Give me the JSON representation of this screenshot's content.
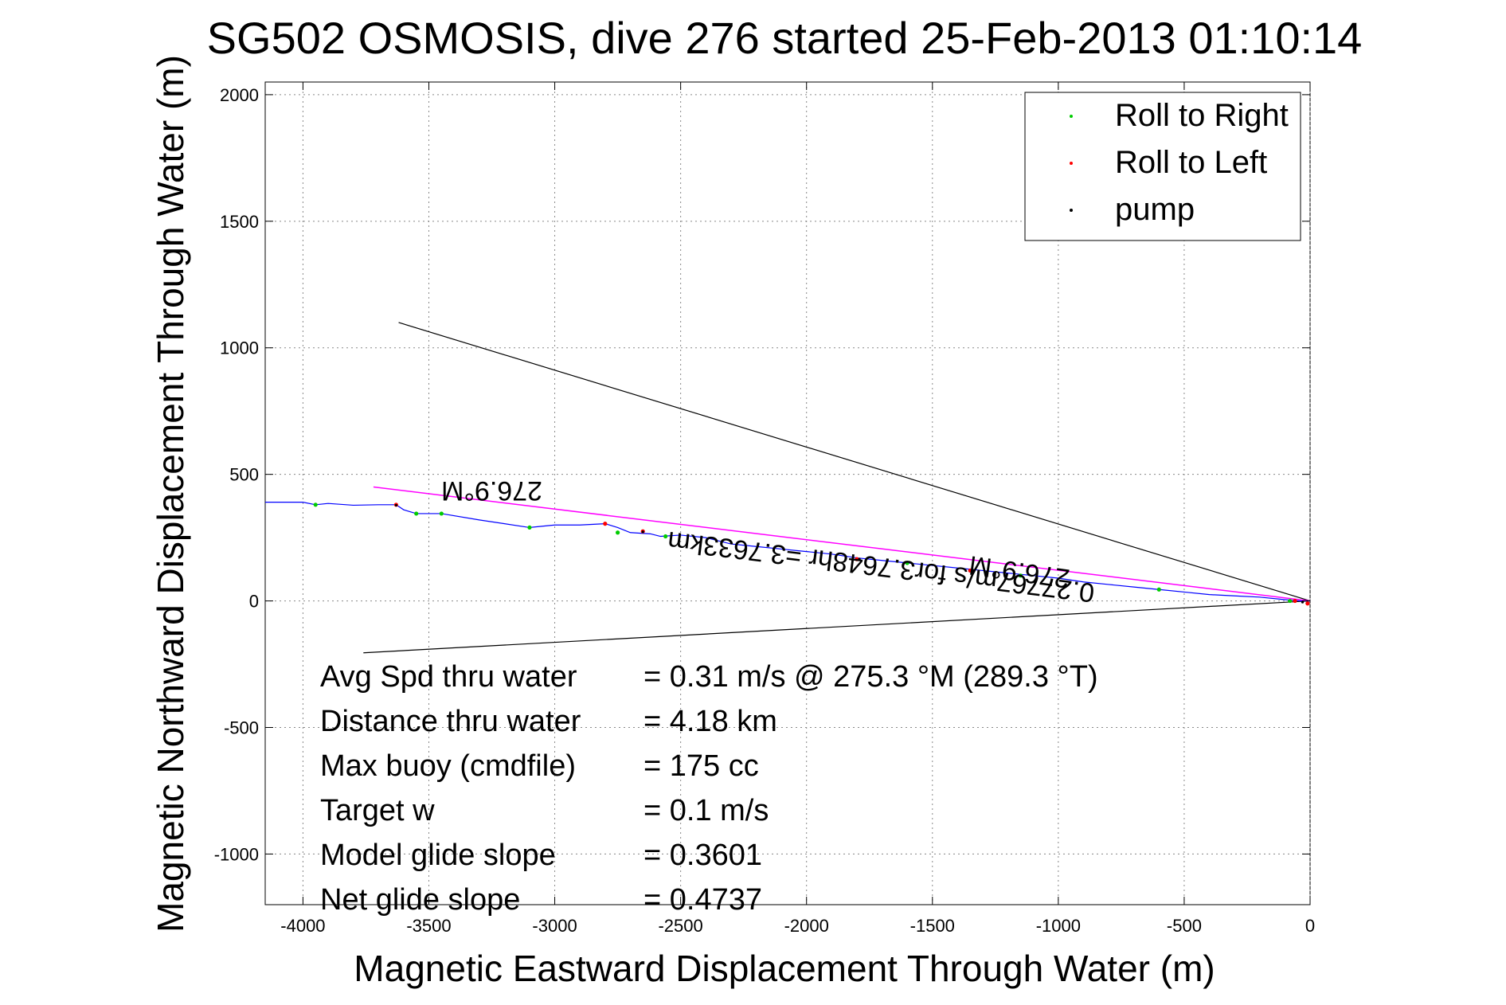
{
  "chart_data": {
    "type": "line",
    "title": "SG502 OSMOSIS, dive 276 started 25-Feb-2013 01:10:14",
    "xlabel": "Magnetic Eastward Displacement Through Water (m)",
    "ylabel": "Magnetic Northward Displacement Through Water (m)",
    "xlim": [
      -4150,
      0
    ],
    "ylim": [
      -1200,
      2050
    ],
    "xticks": [
      -4000,
      -3500,
      -3000,
      -2500,
      -2000,
      -1500,
      -1000,
      -500,
      0
    ],
    "xtick_labels": [
      "-4000",
      "-3500",
      "-3000",
      "-2500",
      "-2000",
      "-1500",
      "-1000",
      "-500",
      "0"
    ],
    "yticks": [
      2000,
      1500,
      1000,
      500,
      0,
      -500,
      -1000
    ],
    "ytick_labels": [
      "2000",
      "1500",
      "1000",
      "500",
      "0",
      "-500",
      "-1000"
    ],
    "grid": true,
    "legend_position": "top-right",
    "legend": [
      {
        "label": "Roll to Right",
        "color": "#00cc00",
        "marker": "dot"
      },
      {
        "label": "Roll to Left",
        "color": "#ff0000",
        "marker": "dot"
      },
      {
        "label": "pump",
        "color": "#000000",
        "marker": "dot"
      }
    ],
    "track": {
      "color": "#0000ff",
      "x": [
        -4150,
        -4000,
        -3950,
        -3900,
        -3800,
        -3700,
        -3630,
        -3600,
        -3550,
        -3450,
        -3300,
        -3100,
        -3000,
        -2900,
        -2800,
        -2750,
        -2700,
        -2620,
        -2580,
        -2500,
        -2400,
        -2300,
        -2200,
        -2100,
        -2000,
        -1900,
        -1800,
        -1700,
        -1600,
        -1500,
        -1400,
        -1300,
        -1200,
        -1100,
        -1000,
        -900,
        -800,
        -700,
        -600,
        -500,
        -400,
        -300,
        -200,
        -100,
        -40,
        0
      ],
      "y": [
        390,
        390,
        380,
        385,
        378,
        380,
        380,
        360,
        345,
        345,
        320,
        290,
        300,
        300,
        305,
        290,
        270,
        265,
        255,
        260,
        250,
        225,
        215,
        205,
        195,
        185,
        170,
        160,
        150,
        140,
        130,
        120,
        110,
        100,
        90,
        75,
        65,
        55,
        45,
        35,
        25,
        20,
        15,
        5,
        0,
        0
      ]
    },
    "roll_right": {
      "color": "#00cc00",
      "x": [
        -3950,
        -3550,
        -3450,
        -3100,
        -2750,
        -2560,
        -1600,
        -1150,
        -600,
        -80
      ],
      "y": [
        380,
        345,
        345,
        290,
        270,
        255,
        150,
        100,
        45,
        0
      ]
    },
    "roll_left": {
      "color": "#ff0000",
      "x": [
        -3630,
        -2800,
        -2650,
        -1800,
        -1350,
        -60,
        -10
      ],
      "y": [
        380,
        305,
        275,
        165,
        120,
        0,
        -10
      ]
    },
    "pump": {
      "color": "#000000",
      "x": [
        -3630,
        -2650,
        -1790,
        -1340,
        -30
      ],
      "y": [
        378,
        273,
        165,
        118,
        -5
      ]
    },
    "heading_line": {
      "color": "#ff00ff",
      "x": [
        -3720,
        0
      ],
      "y": [
        450,
        0
      ]
    },
    "envelope_lines": [
      {
        "color": "#000000",
        "x": [
          -3620,
          0
        ],
        "y": [
          1100,
          0
        ]
      },
      {
        "color": "#000000",
        "x": [
          -3760,
          0
        ],
        "y": [
          -205,
          0
        ]
      }
    ],
    "annotations": [
      {
        "text": "276.9°M",
        "x": -3250,
        "y": 470,
        "angle": 180
      },
      {
        "text": "276.9°M",
        "x": -1150,
        "y": 150,
        "angle": 188
      },
      {
        "text": "0.27767m/s for3.7648hr =3.7633km",
        "x": -1700,
        "y": 170,
        "angle": 187
      }
    ],
    "stats": [
      {
        "label": "Avg Spd thru water",
        "value": "=  0.31 m/s @ 275.3 °M (289.3 °T)"
      },
      {
        "label": "Distance thru water",
        "value": "=  4.18 km"
      },
      {
        "label": "Max buoy (cmdfile)",
        "value": "= 175 cc"
      },
      {
        "label": "Target w",
        "value": "= 0.1 m/s"
      },
      {
        "label": "Model glide slope",
        "value": "= 0.3601"
      },
      {
        "label": "Net glide slope",
        "value": "= 0.4737"
      }
    ]
  }
}
